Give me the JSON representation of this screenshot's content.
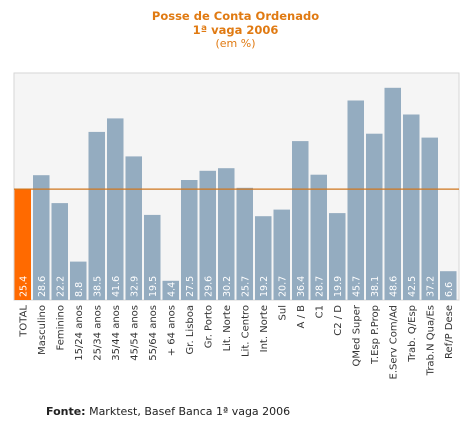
{
  "chart_data": {
    "type": "bar",
    "title": "Posse de Conta Ordenado",
    "subtitle": "1ª vaga 2006",
    "unit_label": "(em %)",
    "categories": [
      "TOTAL",
      "Masculino",
      "Feminino",
      "15/24 anos",
      "25/34 anos",
      "35/44 anos",
      "45/54 anos",
      "55/64 anos",
      "+ 64 anos",
      "Gr. Lisboa",
      "Gr. Porto",
      "Lit. Norte",
      "Lit. Centro",
      "Int. Norte",
      "Sul",
      "A / B",
      "C1",
      "C2 / D",
      "QMed Super",
      "T.Esp P.Prop",
      "E.Serv Com/Ad",
      "Trab. Q/Esp",
      "Trab.N Qua/Es",
      "Ref/P Dese"
    ],
    "values": [
      25.4,
      28.6,
      22.2,
      8.8,
      38.5,
      41.6,
      32.9,
      19.5,
      4.4,
      27.5,
      29.6,
      30.2,
      25.7,
      19.2,
      20.7,
      36.4,
      28.7,
      19.9,
      45.7,
      38.1,
      48.6,
      42.5,
      37.2,
      6.6
    ],
    "value_labels": [
      "25.4",
      "28.6",
      "22.2",
      "8.8",
      "38.5",
      "41.6",
      "32.9",
      "19.5",
      "4.4",
      "27.5",
      "29.6",
      "30.2",
      "25.7",
      "19.2",
      "20.7",
      "36.4",
      "28.7",
      "19.9",
      "45.7",
      "38.1",
      "48.6",
      "42.5",
      "37.2",
      "6.6"
    ],
    "reference_line": 25.4,
    "ylim": [
      0,
      52
    ],
    "highlight_index": 0,
    "grid": false,
    "colors": {
      "bar": "#94acc0",
      "highlight": "#ff6a00",
      "reference_line": "#d0761e",
      "plot_bg": "#f5f5f5",
      "title": "#e07a12"
    }
  },
  "source": {
    "label": "Fonte:",
    "text": " Marktest, Basef Banca 1ª vaga 2006"
  }
}
